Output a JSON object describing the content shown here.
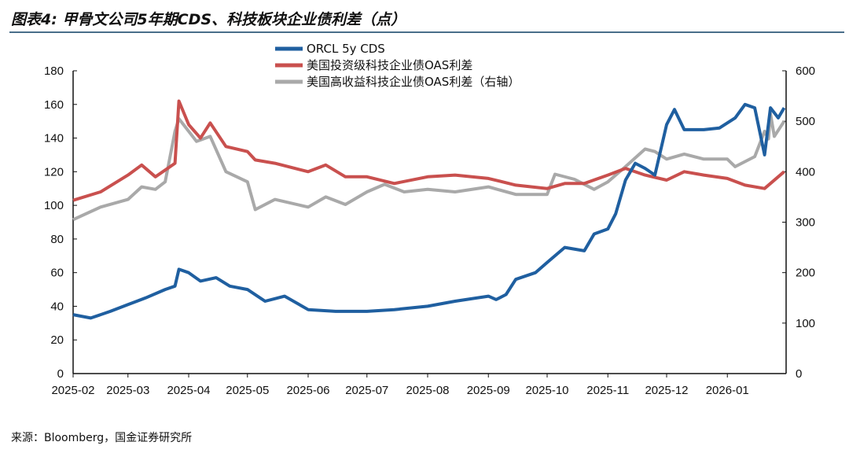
{
  "title": "图表4:  甲骨文公司5年期CDS、科技板块企业债利差（点）",
  "source": "来源：Bloomberg，国金证券研究所",
  "chart_data": {
    "type": "line",
    "xlim": [
      "2025-02-01",
      "2026-01-31"
    ],
    "x_ticks": [
      "2025-02",
      "2025-03",
      "2025-04",
      "2025-05",
      "2025-06",
      "2025-07",
      "2025-08",
      "2025-09",
      "2025-10",
      "2025-11",
      "2025-12",
      "2026-01"
    ],
    "y_left": {
      "range": [
        0,
        180
      ],
      "ticks": [
        0,
        20,
        40,
        60,
        80,
        100,
        120,
        140,
        160,
        180
      ]
    },
    "y_right": {
      "range": [
        0,
        600
      ],
      "ticks": [
        0,
        100,
        200,
        300,
        400,
        500,
        600
      ]
    },
    "legend_placement": "top-center",
    "grid": false,
    "series": [
      {
        "name": "ORCL 5y CDS",
        "axis": "left",
        "color": "#1f5fa0",
        "points": [
          [
            "2025-02-01",
            35
          ],
          [
            "2025-02-10",
            33
          ],
          [
            "2025-02-20",
            37
          ],
          [
            "2025-03-01",
            41
          ],
          [
            "2025-03-10",
            45
          ],
          [
            "2025-03-20",
            50
          ],
          [
            "2025-03-25",
            52
          ],
          [
            "2025-03-27",
            62
          ],
          [
            "2025-04-01",
            60
          ],
          [
            "2025-04-07",
            55
          ],
          [
            "2025-04-15",
            57
          ],
          [
            "2025-04-22",
            52
          ],
          [
            "2025-05-01",
            50
          ],
          [
            "2025-05-10",
            43
          ],
          [
            "2025-05-20",
            46
          ],
          [
            "2025-06-01",
            38
          ],
          [
            "2025-06-15",
            37
          ],
          [
            "2025-07-01",
            37
          ],
          [
            "2025-07-15",
            38
          ],
          [
            "2025-08-01",
            40
          ],
          [
            "2025-08-15",
            43
          ],
          [
            "2025-09-01",
            46
          ],
          [
            "2025-09-05",
            44
          ],
          [
            "2025-09-10",
            47
          ],
          [
            "2025-09-15",
            56
          ],
          [
            "2025-09-25",
            60
          ],
          [
            "2025-10-01",
            66
          ],
          [
            "2025-10-10",
            75
          ],
          [
            "2025-10-20",
            73
          ],
          [
            "2025-10-25",
            83
          ],
          [
            "2025-11-01",
            86
          ],
          [
            "2025-11-05",
            95
          ],
          [
            "2025-11-10",
            115
          ],
          [
            "2025-11-15",
            125
          ],
          [
            "2025-11-20",
            122
          ],
          [
            "2025-11-25",
            118
          ],
          [
            "2025-12-01",
            148
          ],
          [
            "2025-12-05",
            157
          ],
          [
            "2025-12-10",
            145
          ],
          [
            "2025-12-20",
            145
          ],
          [
            "2025-12-28",
            146
          ],
          [
            "2026-01-05",
            152
          ],
          [
            "2026-01-10",
            160
          ],
          [
            "2026-01-15",
            158
          ],
          [
            "2026-01-20",
            130
          ],
          [
            "2026-01-23",
            158
          ],
          [
            "2026-01-27",
            152
          ],
          [
            "2026-01-30",
            158
          ]
        ]
      },
      {
        "name": "美国投资级科技企业债OAS利差",
        "axis": "left",
        "color": "#c9504e",
        "points": [
          [
            "2025-02-01",
            103
          ],
          [
            "2025-02-15",
            108
          ],
          [
            "2025-03-01",
            118
          ],
          [
            "2025-03-08",
            124
          ],
          [
            "2025-03-15",
            117
          ],
          [
            "2025-03-25",
            125
          ],
          [
            "2025-03-27",
            162
          ],
          [
            "2025-04-01",
            148
          ],
          [
            "2025-04-07",
            140
          ],
          [
            "2025-04-12",
            149
          ],
          [
            "2025-04-20",
            135
          ],
          [
            "2025-05-01",
            132
          ],
          [
            "2025-05-05",
            127
          ],
          [
            "2025-05-15",
            125
          ],
          [
            "2025-06-01",
            120
          ],
          [
            "2025-06-10",
            124
          ],
          [
            "2025-06-20",
            117
          ],
          [
            "2025-07-01",
            117
          ],
          [
            "2025-07-15",
            113
          ],
          [
            "2025-08-01",
            117
          ],
          [
            "2025-08-15",
            118
          ],
          [
            "2025-09-01",
            116
          ],
          [
            "2025-09-15",
            112
          ],
          [
            "2025-10-01",
            110
          ],
          [
            "2025-10-10",
            113
          ],
          [
            "2025-10-20",
            113
          ],
          [
            "2025-11-01",
            118
          ],
          [
            "2025-11-10",
            122
          ],
          [
            "2025-11-20",
            118
          ],
          [
            "2025-12-01",
            115
          ],
          [
            "2025-12-10",
            120
          ],
          [
            "2025-12-20",
            118
          ],
          [
            "2026-01-01",
            116
          ],
          [
            "2026-01-10",
            112
          ],
          [
            "2026-01-20",
            110
          ],
          [
            "2026-01-30",
            120
          ]
        ]
      },
      {
        "name": "美国高收益科技企业债OAS利差（右轴）",
        "axis": "right",
        "color": "#a9a9a9",
        "points": [
          [
            "2025-02-01",
            305
          ],
          [
            "2025-02-15",
            330
          ],
          [
            "2025-03-01",
            345
          ],
          [
            "2025-03-08",
            370
          ],
          [
            "2025-03-15",
            365
          ],
          [
            "2025-03-20",
            380
          ],
          [
            "2025-03-25",
            480
          ],
          [
            "2025-03-27",
            505
          ],
          [
            "2025-04-05",
            460
          ],
          [
            "2025-04-12",
            470
          ],
          [
            "2025-04-20",
            400
          ],
          [
            "2025-05-01",
            380
          ],
          [
            "2025-05-05",
            325
          ],
          [
            "2025-05-15",
            345
          ],
          [
            "2025-06-01",
            330
          ],
          [
            "2025-06-10",
            350
          ],
          [
            "2025-06-20",
            335
          ],
          [
            "2025-07-01",
            360
          ],
          [
            "2025-07-10",
            375
          ],
          [
            "2025-07-20",
            360
          ],
          [
            "2025-08-01",
            365
          ],
          [
            "2025-08-15",
            360
          ],
          [
            "2025-09-01",
            370
          ],
          [
            "2025-09-15",
            355
          ],
          [
            "2025-10-01",
            355
          ],
          [
            "2025-10-05",
            395
          ],
          [
            "2025-10-15",
            385
          ],
          [
            "2025-10-25",
            365
          ],
          [
            "2025-11-01",
            380
          ],
          [
            "2025-11-10",
            410
          ],
          [
            "2025-11-20",
            445
          ],
          [
            "2025-11-25",
            440
          ],
          [
            "2025-12-01",
            425
          ],
          [
            "2025-12-10",
            435
          ],
          [
            "2025-12-20",
            425
          ],
          [
            "2026-01-01",
            425
          ],
          [
            "2026-01-05",
            410
          ],
          [
            "2026-01-15",
            430
          ],
          [
            "2026-01-20",
            480
          ],
          [
            "2026-01-22",
            465
          ],
          [
            "2026-01-23",
            515
          ],
          [
            "2026-01-25",
            470
          ],
          [
            "2026-01-30",
            500
          ]
        ]
      }
    ]
  }
}
